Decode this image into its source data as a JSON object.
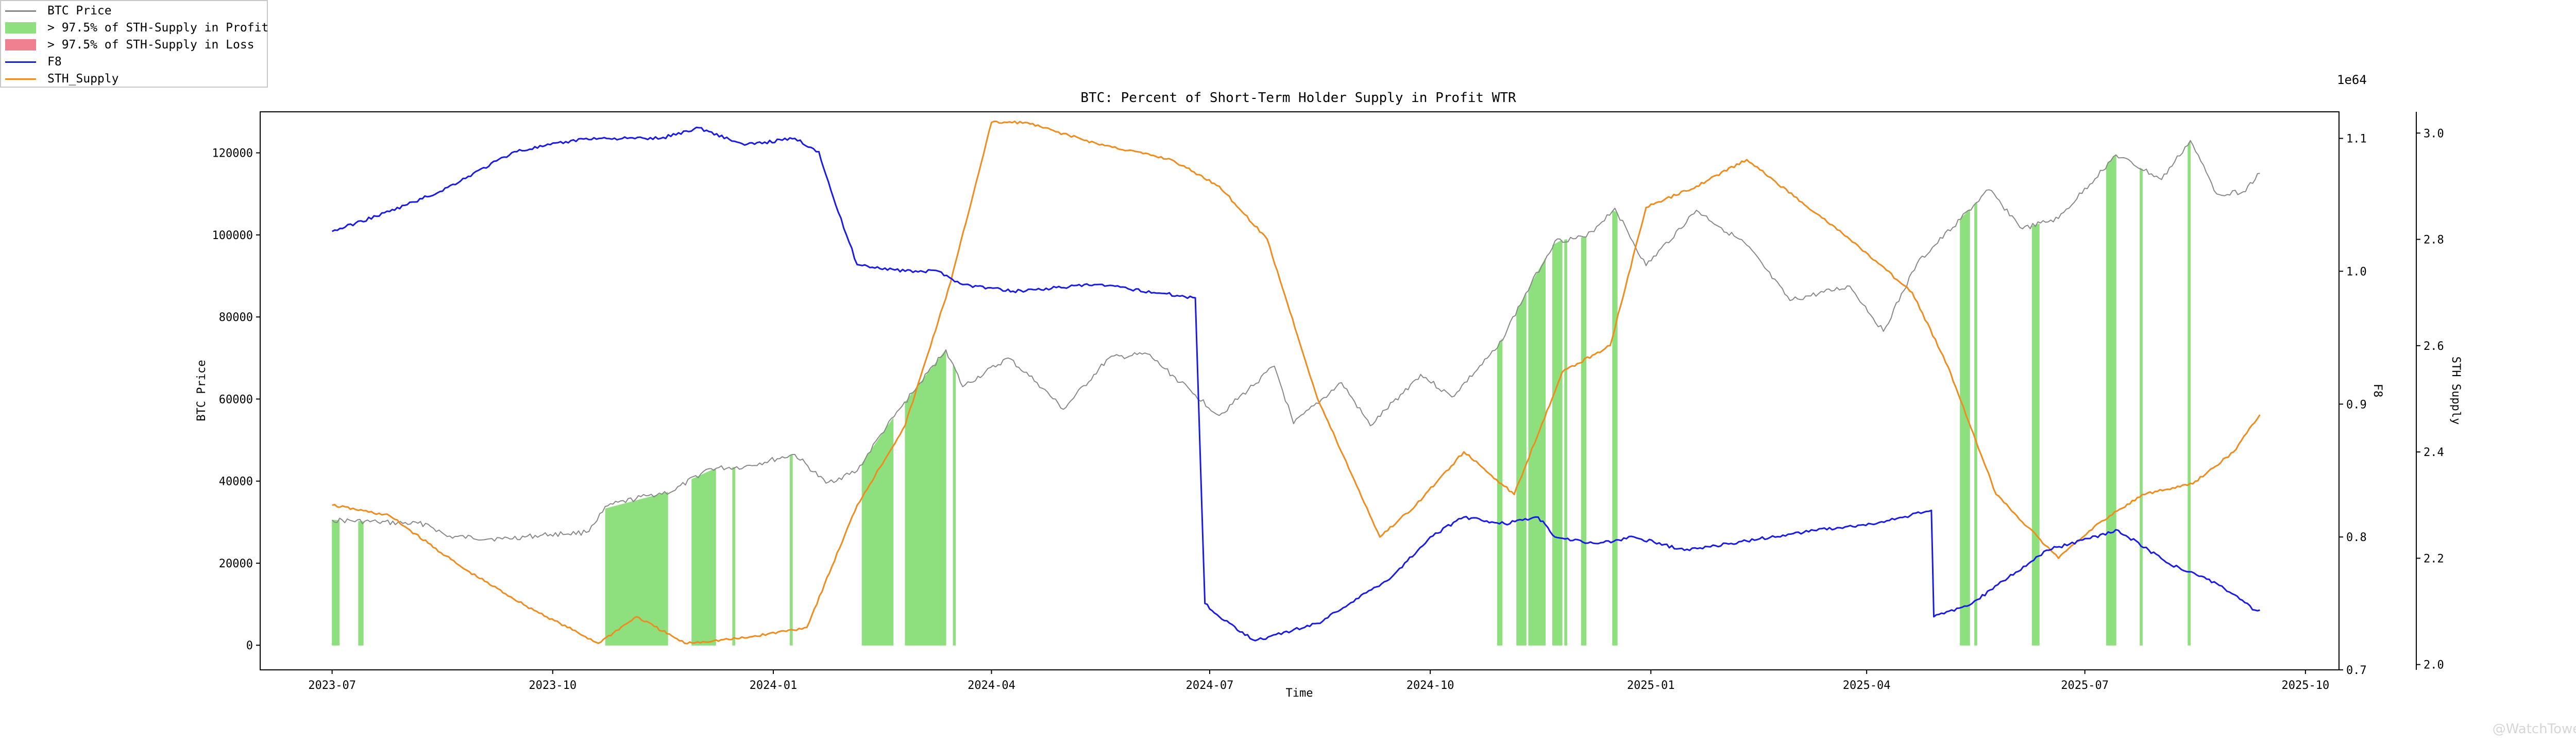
{
  "chart_data": {
    "type": "line",
    "title": "BTC: Percent of Short-Term Holder Supply in Profit WTR",
    "xlabel": "Time",
    "ylabel_left": "BTC Price",
    "ylabel_right_inner": "F8",
    "ylabel_right_outer": "STH Supply",
    "right_outer_offset_label": "1e64",
    "x_ticks": [
      "2023-07",
      "2023-10",
      "2024-01",
      "2024-04",
      "2024-07",
      "2024-10",
      "2025-01",
      "2025-04",
      "2025-07",
      "2025-10"
    ],
    "y_left_ticks": [
      "0",
      "20000",
      "40000",
      "60000",
      "80000",
      "100000",
      "120000"
    ],
    "y_f8_ticks": [
      "0.7",
      "0.8",
      "0.9",
      "1.0",
      "1.1"
    ],
    "y_sth_ticks": [
      "2.0",
      "2.2",
      "2.4",
      "2.6",
      "2.8",
      "3.0"
    ],
    "x_range": [
      "2023-06-01",
      "2025-10-15"
    ],
    "ylim_left": [
      -6000,
      130000
    ],
    "ylim_f8": [
      0.7,
      1.12
    ],
    "ylim_sth": [
      1.99,
      3.04
    ],
    "legend": [
      {
        "label": "BTC Price",
        "kind": "line",
        "color": "#888888"
      },
      {
        "label": "> 97.5% of STH-Supply in Profit",
        "kind": "patch",
        "color": "#8ee07e"
      },
      {
        "label": "> 97.5% of STH-Supply in Loss",
        "kind": "patch",
        "color": "#f08090"
      },
      {
        "label": "F8",
        "kind": "line",
        "color": "#1a1ae6"
      },
      {
        "label": "STH_Supply",
        "kind": "line",
        "color": "#f08c1e"
      }
    ],
    "legend_position": "top-left",
    "series": [
      {
        "name": "BTC Price",
        "axis": "left",
        "color": "#888888",
        "points": [
          [
            "2023-07-01",
            30500
          ],
          [
            "2023-07-20",
            30000
          ],
          [
            "2023-08-10",
            29500
          ],
          [
            "2023-08-18",
            26500
          ],
          [
            "2023-09-10",
            25900
          ],
          [
            "2023-09-30",
            27000
          ],
          [
            "2023-10-15",
            27500
          ],
          [
            "2023-10-24",
            34000
          ],
          [
            "2023-11-10",
            36500
          ],
          [
            "2023-11-20",
            37500
          ],
          [
            "2023-12-05",
            43000
          ],
          [
            "2023-12-20",
            43500
          ],
          [
            "2024-01-10",
            46500
          ],
          [
            "2024-01-23",
            39500
          ],
          [
            "2024-02-05",
            42500
          ],
          [
            "2024-02-15",
            51500
          ],
          [
            "2024-02-28",
            61500
          ],
          [
            "2024-03-13",
            72000
          ],
          [
            "2024-03-20",
            63000
          ],
          [
            "2024-04-08",
            70000
          ],
          [
            "2024-04-20",
            64000
          ],
          [
            "2024-05-01",
            57500
          ],
          [
            "2024-05-20",
            70000
          ],
          [
            "2024-06-05",
            71000
          ],
          [
            "2024-06-25",
            61000
          ],
          [
            "2024-07-05",
            56000
          ],
          [
            "2024-07-28",
            68000
          ],
          [
            "2024-08-05",
            54000
          ],
          [
            "2024-08-25",
            64000
          ],
          [
            "2024-09-06",
            53500
          ],
          [
            "2024-09-27",
            66000
          ],
          [
            "2024-10-10",
            60500
          ],
          [
            "2024-10-29",
            72500
          ],
          [
            "2024-11-12",
            88000
          ],
          [
            "2024-11-22",
            98500
          ],
          [
            "2024-12-05",
            99500
          ],
          [
            "2024-12-17",
            106500
          ],
          [
            "2024-12-30",
            92500
          ],
          [
            "2025-01-20",
            106000
          ],
          [
            "2025-02-10",
            97500
          ],
          [
            "2025-02-28",
            84000
          ],
          [
            "2025-03-25",
            87500
          ],
          [
            "2025-04-08",
            76500
          ],
          [
            "2025-04-22",
            93000
          ],
          [
            "2025-05-22",
            111000
          ],
          [
            "2025-06-05",
            101500
          ],
          [
            "2025-06-20",
            104000
          ],
          [
            "2025-07-14",
            119500
          ],
          [
            "2025-08-02",
            113500
          ],
          [
            "2025-08-14",
            123000
          ],
          [
            "2025-08-25",
            110000
          ],
          [
            "2025-09-05",
            110500
          ],
          [
            "2025-09-12",
            115000
          ]
        ]
      },
      {
        "name": "F8",
        "axis": "f8",
        "color": "#1a1ae6",
        "points": [
          [
            "2023-07-01",
            1.03
          ],
          [
            "2023-07-25",
            1.045
          ],
          [
            "2023-08-15",
            1.06
          ],
          [
            "2023-09-15",
            1.09
          ],
          [
            "2023-10-15",
            1.1
          ],
          [
            "2023-11-15",
            1.1
          ],
          [
            "2023-12-01",
            1.108
          ],
          [
            "2023-12-20",
            1.095
          ],
          [
            "2024-01-10",
            1.1
          ],
          [
            "2024-01-20",
            1.09
          ],
          [
            "2024-01-27",
            1.05
          ],
          [
            "2024-02-05",
            1.005
          ],
          [
            "2024-02-25",
            1.0
          ],
          [
            "2024-03-10",
            1.0
          ],
          [
            "2024-03-20",
            0.99
          ],
          [
            "2024-04-10",
            0.985
          ],
          [
            "2024-05-15",
            0.99
          ],
          [
            "2024-06-25",
            0.98
          ],
          [
            "2024-06-29",
            0.75
          ],
          [
            "2024-07-05",
            0.74
          ],
          [
            "2024-07-20",
            0.722
          ],
          [
            "2024-08-15",
            0.735
          ],
          [
            "2024-09-15",
            0.77
          ],
          [
            "2024-10-01",
            0.8
          ],
          [
            "2024-10-15",
            0.815
          ],
          [
            "2024-11-01",
            0.81
          ],
          [
            "2024-11-15",
            0.815
          ],
          [
            "2024-11-22",
            0.8
          ],
          [
            "2024-12-10",
            0.795
          ],
          [
            "2024-12-25",
            0.8
          ],
          [
            "2025-01-15",
            0.79
          ],
          [
            "2025-02-10",
            0.797
          ],
          [
            "2025-03-10",
            0.805
          ],
          [
            "2025-04-05",
            0.81
          ],
          [
            "2025-04-28",
            0.82
          ],
          [
            "2025-04-29",
            0.74
          ],
          [
            "2025-05-15",
            0.75
          ],
          [
            "2025-06-15",
            0.79
          ],
          [
            "2025-07-15",
            0.805
          ],
          [
            "2025-08-05",
            0.78
          ],
          [
            "2025-08-25",
            0.765
          ],
          [
            "2025-09-10",
            0.745
          ],
          [
            "2025-09-12",
            0.745
          ]
        ]
      },
      {
        "name": "STH_Supply",
        "axis": "sth",
        "color": "#f08c1e",
        "points": [
          [
            "2023-07-01",
            2.3
          ],
          [
            "2023-07-25",
            2.28
          ],
          [
            "2023-08-25",
            2.18
          ],
          [
            "2023-09-20",
            2.11
          ],
          [
            "2023-10-20",
            2.04
          ],
          [
            "2023-11-05",
            2.09
          ],
          [
            "2023-11-25",
            2.04
          ],
          [
            "2023-12-20",
            2.05
          ],
          [
            "2024-01-15",
            2.07
          ],
          [
            "2024-02-05",
            2.3
          ],
          [
            "2024-02-25",
            2.45
          ],
          [
            "2024-03-15",
            2.72
          ],
          [
            "2024-04-01",
            3.02
          ],
          [
            "2024-04-15",
            3.02
          ],
          [
            "2024-05-15",
            2.98
          ],
          [
            "2024-06-15",
            2.95
          ],
          [
            "2024-07-05",
            2.9
          ],
          [
            "2024-07-25",
            2.8
          ],
          [
            "2024-08-15",
            2.5
          ],
          [
            "2024-09-10",
            2.24
          ],
          [
            "2024-09-25",
            2.3
          ],
          [
            "2024-10-15",
            2.4
          ],
          [
            "2024-11-05",
            2.32
          ],
          [
            "2024-11-25",
            2.55
          ],
          [
            "2024-12-15",
            2.6
          ],
          [
            "2024-12-30",
            2.86
          ],
          [
            "2025-01-20",
            2.9
          ],
          [
            "2025-02-10",
            2.95
          ],
          [
            "2025-03-05",
            2.87
          ],
          [
            "2025-03-25",
            2.8
          ],
          [
            "2025-04-20",
            2.7
          ],
          [
            "2025-05-05",
            2.56
          ],
          [
            "2025-05-25",
            2.32
          ],
          [
            "2025-06-20",
            2.2
          ],
          [
            "2025-07-05",
            2.26
          ],
          [
            "2025-07-25",
            2.32
          ],
          [
            "2025-08-15",
            2.34
          ],
          [
            "2025-09-01",
            2.4
          ],
          [
            "2025-09-12",
            2.47
          ]
        ]
      },
      {
        "name": "> 97.5% of STH-Supply in Profit",
        "type": "area",
        "axis": "left",
        "color": "#8ee07e",
        "intervals": [
          [
            "2023-07-01",
            "2023-07-04"
          ],
          [
            "2023-07-12",
            "2023-07-14"
          ],
          [
            "2023-10-23",
            "2023-11-18"
          ],
          [
            "2023-11-28",
            "2023-12-08"
          ],
          [
            "2023-12-15",
            "2023-12-16"
          ],
          [
            "2024-01-08",
            "2024-01-09"
          ],
          [
            "2024-02-07",
            "2024-02-20"
          ],
          [
            "2024-02-25",
            "2024-03-13"
          ],
          [
            "2024-03-16",
            "2024-03-17"
          ],
          [
            "2024-10-29",
            "2024-10-31"
          ],
          [
            "2024-11-06",
            "2024-11-10"
          ],
          [
            "2024-11-11",
            "2024-11-18"
          ],
          [
            "2024-11-21",
            "2024-11-25"
          ],
          [
            "2024-11-26",
            "2024-11-27"
          ],
          [
            "2024-12-03",
            "2024-12-05"
          ],
          [
            "2024-12-16",
            "2024-12-18"
          ],
          [
            "2025-05-10",
            "2025-05-14"
          ],
          [
            "2025-05-16",
            "2025-05-17"
          ],
          [
            "2025-06-09",
            "2025-06-12"
          ],
          [
            "2025-07-10",
            "2025-07-14"
          ],
          [
            "2025-07-24",
            "2025-07-25"
          ],
          [
            "2025-08-13",
            "2025-08-14"
          ]
        ]
      }
    ]
  },
  "watermark": "@WatchTower"
}
